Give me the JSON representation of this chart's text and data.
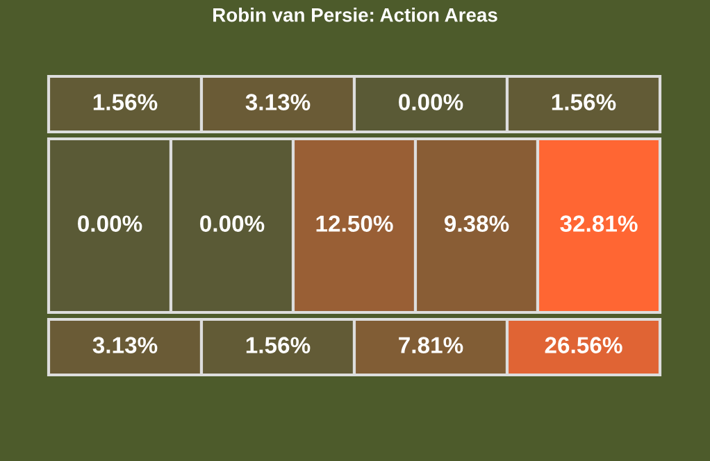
{
  "chart_data": {
    "type": "other",
    "title": "Robin van Persie: Action Areas",
    "values": [
      1.56,
      3.13,
      0.0,
      1.56,
      0.0,
      0.0,
      12.5,
      9.38,
      32.81,
      3.13,
      1.56,
      7.81,
      26.56
    ],
    "value_labels": [
      "1.56%",
      "3.13%",
      "0.00%",
      "1.56%",
      "0.00%",
      "0.00%",
      "12.50%",
      "9.38%",
      "32.81%",
      "3.13%",
      "1.56%",
      "7.81%",
      "26.56%"
    ]
  }
}
